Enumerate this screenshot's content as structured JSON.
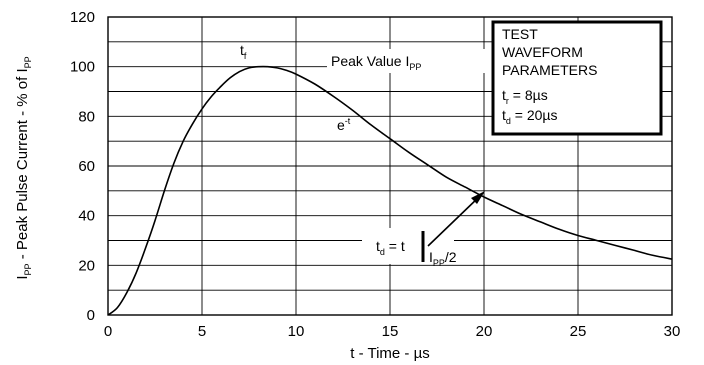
{
  "chart_data": {
    "type": "line",
    "xlabel": "t - Time - µs",
    "ylabel": {
      "main": "I",
      "sub1": "PP",
      "mid": " - Peak Pulse Current - % of I",
      "sub2": "PP"
    },
    "xlim": [
      0,
      30
    ],
    "ylim": [
      0,
      120
    ],
    "x_ticks": [
      "0",
      "5",
      "10",
      "15",
      "20",
      "25",
      "30"
    ],
    "y_ticks": [
      "0",
      "20",
      "40",
      "60",
      "80",
      "100",
      "120"
    ],
    "grid": true,
    "series": [
      {
        "x": [
          0,
          0.5,
          1,
          1.5,
          2,
          2.5,
          3,
          3.5,
          4,
          4.5,
          5,
          5.5,
          6,
          6.5,
          7,
          7.5,
          8,
          8.5,
          9,
          9.5,
          10,
          11,
          12,
          13,
          14,
          15,
          16,
          17,
          18,
          19,
          20,
          21,
          22,
          23,
          24,
          25,
          26,
          27,
          28,
          29,
          30
        ],
        "y": [
          0,
          3,
          9,
          17,
          27,
          38,
          50,
          61,
          70,
          77,
          83,
          88,
          92,
          95.5,
          98,
          99.5,
          100,
          100,
          99.5,
          98.5,
          97,
          93,
          88,
          82.5,
          76.5,
          71,
          65.5,
          60.5,
          55.5,
          51.5,
          47.5,
          44,
          40.5,
          37.5,
          34.5,
          32,
          30,
          28,
          26,
          24,
          22.5
        ]
      }
    ],
    "annotations": {
      "tf": {
        "main": "t",
        "sub": "f"
      },
      "peak": {
        "text": "Peak Value I",
        "sub": "PP"
      },
      "decay": {
        "main": "e",
        "sup": "-t"
      },
      "td": {
        "t": "t",
        "tsub": "d",
        "eq": " = t",
        "i": "I",
        "isub": "PP",
        "tail": "/2"
      }
    },
    "legend_box": {
      "line1": "TEST",
      "line2": "WAVEFORM",
      "line3": "PARAMETERS",
      "tf_main": "t",
      "tf_sub": "r",
      "tf_val": " = 8µs",
      "td_main": "t",
      "td_sub": "d",
      "td_val": " = 20µs"
    }
  }
}
